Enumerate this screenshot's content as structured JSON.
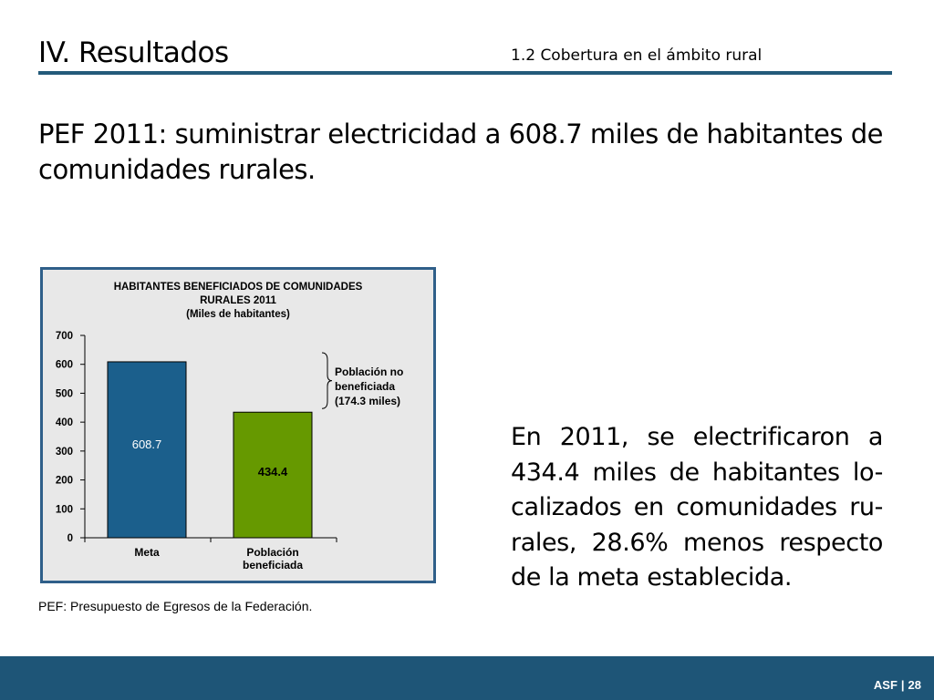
{
  "header": {
    "title": "IV. Resultados",
    "subtitle": "1.2  Cobertura en el ámbito rural"
  },
  "lead_text": "PEF 2011: suministrar electricidad a 608.7 miles de habitantes de comunidades rurales.",
  "side_text": "En 2011, se electrificaron a 434.4 miles de habitantes lo-calizados en comunidades ru-rales, 28.6% menos respecto de la meta establecida.",
  "footnote": "PEF: Presupuesto de Egresos de la Federación.",
  "footer": {
    "brand": "ASF",
    "separator": "|",
    "page": "28"
  },
  "colors": {
    "accent": "#235a7a",
    "bar_meta": "#1b5f8c",
    "bar_poblacion": "#669900"
  },
  "chart_data": {
    "type": "bar",
    "title": [
      "HABITANTES BENEFICIADOS DE COMUNIDADES",
      "RURALES 2011",
      "(Miles de habitantes)"
    ],
    "categories": [
      [
        "Meta"
      ],
      [
        "Población",
        "beneficiada"
      ]
    ],
    "values": [
      608.7,
      434.4
    ],
    "value_labels": [
      "608.7",
      "434.4"
    ],
    "ylim": [
      0,
      700
    ],
    "yticks": [
      0,
      100,
      200,
      300,
      400,
      500,
      600,
      700
    ],
    "grid": false,
    "annotation": [
      "Población no",
      "beneficiada",
      "(174.3 miles)"
    ],
    "annotation_range": [
      434.4,
      608.7
    ]
  }
}
